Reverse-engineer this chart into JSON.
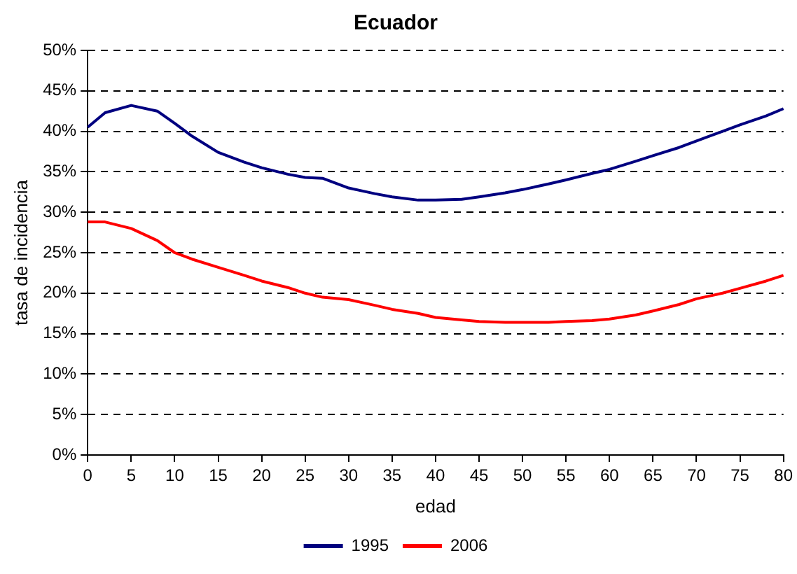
{
  "chart_data": {
    "type": "line",
    "title": "Ecuador",
    "xlabel": "edad",
    "ylabel": "tasa de incidencia",
    "x": [
      0,
      2,
      5,
      8,
      10,
      12,
      15,
      18,
      20,
      23,
      25,
      27,
      30,
      33,
      35,
      38,
      40,
      43,
      45,
      48,
      50,
      53,
      55,
      58,
      60,
      63,
      65,
      68,
      70,
      73,
      75,
      78,
      80
    ],
    "series": [
      {
        "name": "1995",
        "color": "#000080",
        "values": [
          40.5,
          42.3,
          43.2,
          42.5,
          41,
          39.4,
          37.4,
          36.2,
          35.5,
          34.7,
          34.3,
          34.2,
          33,
          32.3,
          31.9,
          31.5,
          31.5,
          31.6,
          31.9,
          32.4,
          32.8,
          33.5,
          34,
          34.8,
          35.3,
          36.3,
          37,
          38,
          38.8,
          40,
          40.8,
          41.9,
          42.8
        ]
      },
      {
        "name": "2006",
        "color": "#ff0000",
        "values": [
          28.8,
          28.8,
          28,
          26.5,
          25,
          24.2,
          23.2,
          22.2,
          21.5,
          20.7,
          20,
          19.5,
          19.2,
          18.5,
          18,
          17.5,
          17,
          16.7,
          16.5,
          16.4,
          16.4,
          16.4,
          16.5,
          16.6,
          16.8,
          17.3,
          17.8,
          18.6,
          19.3,
          20,
          20.6,
          21.5,
          22.2
        ]
      }
    ],
    "xlim": [
      0,
      80
    ],
    "xticks": [
      0,
      5,
      10,
      15,
      20,
      25,
      30,
      35,
      40,
      45,
      50,
      55,
      60,
      65,
      70,
      75,
      80
    ],
    "ylim": [
      0,
      50
    ],
    "yticks": [
      {
        "value": 0,
        "label": "0%"
      },
      {
        "value": 5,
        "label": "5%"
      },
      {
        "value": 10,
        "label": "10%"
      },
      {
        "value": 15,
        "label": "15%"
      },
      {
        "value": 20,
        "label": "20%"
      },
      {
        "value": 25,
        "label": "25%"
      },
      {
        "value": 30,
        "label": "30%"
      },
      {
        "value": 35,
        "label": "35%"
      },
      {
        "value": 40,
        "label": "40%"
      },
      {
        "value": 45,
        "label": "45%"
      },
      {
        "value": 50,
        "label": "50%"
      }
    ],
    "grid": "y",
    "legend": "bottom",
    "marker": "none",
    "line_style": "solid"
  }
}
